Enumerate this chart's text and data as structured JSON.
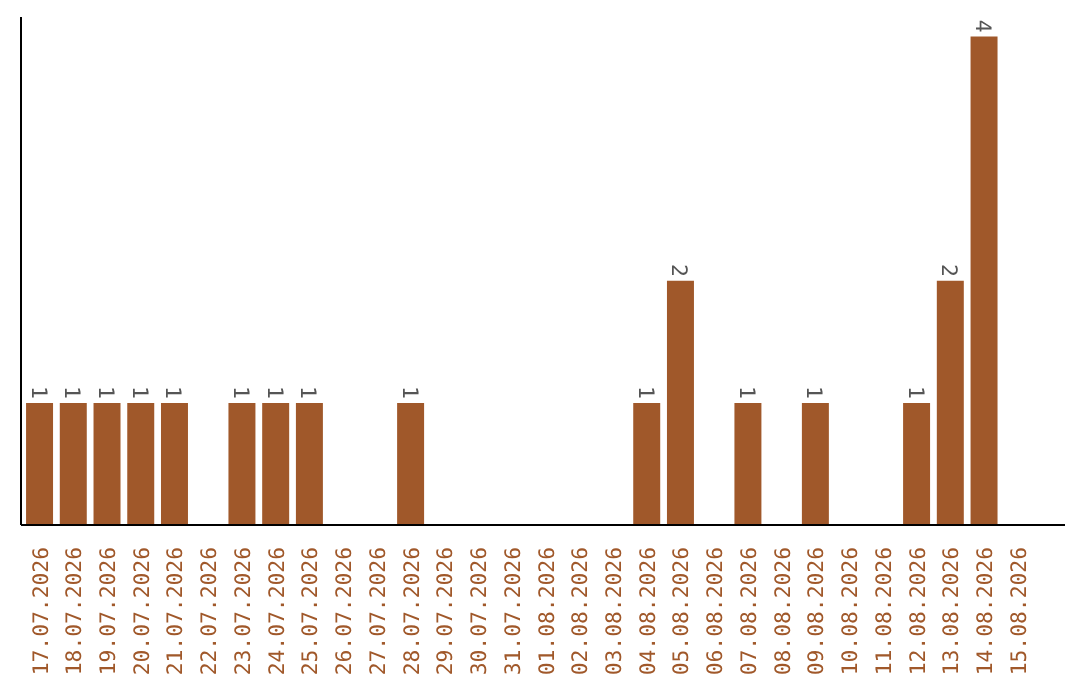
{
  "chart_data": {
    "type": "bar",
    "categories": [
      "17.07.2026",
      "18.07.2026",
      "19.07.2026",
      "20.07.2026",
      "21.07.2026",
      "22.07.2026",
      "23.07.2026",
      "24.07.2026",
      "25.07.2026",
      "26.07.2026",
      "27.07.2026",
      "28.07.2026",
      "29.07.2026",
      "30.07.2026",
      "31.07.2026",
      "01.08.2026",
      "02.08.2026",
      "03.08.2026",
      "04.08.2026",
      "05.08.2026",
      "06.08.2026",
      "07.08.2026",
      "08.08.2026",
      "09.08.2026",
      "10.08.2026",
      "11.08.2026",
      "12.08.2026",
      "13.08.2026",
      "14.08.2026",
      "15.08.2026"
    ],
    "values": [
      1,
      1,
      1,
      1,
      1,
      0,
      1,
      1,
      1,
      0,
      0,
      1,
      0,
      0,
      0,
      0,
      0,
      0,
      1,
      2,
      0,
      1,
      0,
      1,
      0,
      0,
      1,
      2,
      4,
      0
    ],
    "value_labels": [
      "1",
      "1",
      "1",
      "1",
      "1",
      null,
      "1",
      "1",
      "1",
      null,
      null,
      "1",
      null,
      null,
      null,
      null,
      null,
      null,
      "1",
      "2",
      null,
      "1",
      null,
      "1",
      null,
      null,
      "1",
      "2",
      "4",
      null
    ],
    "color": "#a0582a",
    "grid": false
  }
}
